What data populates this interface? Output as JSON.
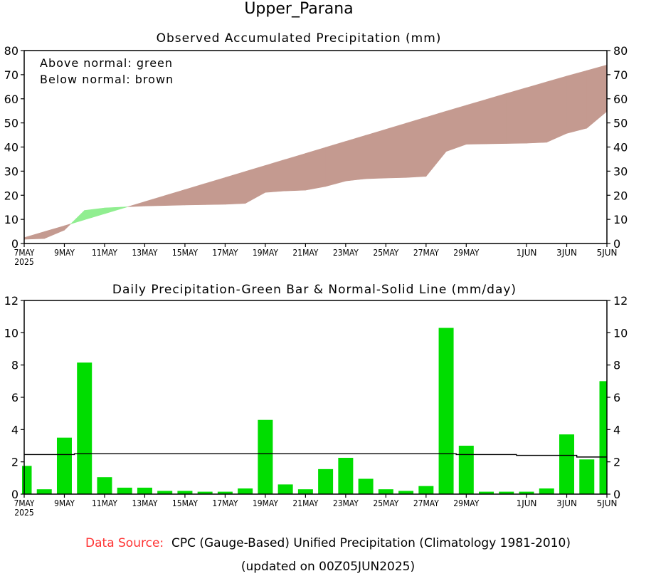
{
  "title": "Upper_Parana",
  "footer": {
    "source_label": "Data Source:",
    "source_text": "CPC (Gauge-Based) Unified Precipitation (Climatology 1981-2010)",
    "updated": "(updated on 00Z05JUN2025)"
  },
  "colors": {
    "above_normal": "#90ee90",
    "below_normal": "#c49a90",
    "bar": "#00dd00",
    "source_label": "#ff3333"
  },
  "chart_data": [
    {
      "type": "area",
      "title": "Observed Accumulated Precipitation (mm)",
      "legend": [
        "Above normal: green",
        "Below normal: brown"
      ],
      "legend_placement": "top-left",
      "ylim": [
        0,
        80
      ],
      "yticks": [
        "0",
        "10",
        "20",
        "30",
        "40",
        "50",
        "60",
        "70",
        "80"
      ],
      "xticks": [
        {
          "day": 0,
          "label": "7MAY",
          "sub": "2025"
        },
        {
          "day": 2,
          "label": "9MAY"
        },
        {
          "day": 4,
          "label": "11MAY"
        },
        {
          "day": 6,
          "label": "13MAY"
        },
        {
          "day": 8,
          "label": "15MAY"
        },
        {
          "day": 10,
          "label": "17MAY"
        },
        {
          "day": 12,
          "label": "19MAY"
        },
        {
          "day": 14,
          "label": "21MAY"
        },
        {
          "day": 16,
          "label": "23MAY"
        },
        {
          "day": 18,
          "label": "25MAY"
        },
        {
          "day": 20,
          "label": "27MAY"
        },
        {
          "day": 22,
          "label": "29MAY"
        },
        {
          "day": 25,
          "label": "1JUN"
        },
        {
          "day": 27,
          "label": "3JUN"
        },
        {
          "day": 29,
          "label": "5JUN"
        }
      ],
      "series": [
        {
          "name": "Observed",
          "values": [
            1.75,
            2.05,
            5.55,
            13.7,
            14.75,
            15.15,
            15.55,
            15.75,
            15.95,
            16.1,
            16.25,
            16.6,
            21.2,
            21.8,
            22.1,
            23.65,
            25.9,
            26.85,
            27.15,
            27.35,
            27.85,
            38.15,
            41.15,
            41.3,
            41.45,
            41.6,
            41.95,
            45.65,
            47.8,
            54.8
          ]
        },
        {
          "name": "Normal",
          "values": [
            2.45,
            4.9,
            7.35,
            9.85,
            12.35,
            14.85,
            17.35,
            19.85,
            22.35,
            24.85,
            27.35,
            29.85,
            32.35,
            34.85,
            37.35,
            39.85,
            42.35,
            44.85,
            47.35,
            49.85,
            52.35,
            54.85,
            57.3,
            59.75,
            62.2,
            64.6,
            67.0,
            69.4,
            71.7,
            74.0
          ]
        }
      ]
    },
    {
      "type": "bar",
      "title": "Daily Precipitation-Green Bar & Normal-Solid Line (mm/day)",
      "ylim": [
        0,
        12
      ],
      "yticks": [
        "0",
        "2",
        "4",
        "6",
        "8",
        "10",
        "12"
      ],
      "xticks": [
        {
          "day": 0,
          "label": "7MAY",
          "sub": "2025"
        },
        {
          "day": 2,
          "label": "9MAY"
        },
        {
          "day": 4,
          "label": "11MAY"
        },
        {
          "day": 6,
          "label": "13MAY"
        },
        {
          "day": 8,
          "label": "15MAY"
        },
        {
          "day": 10,
          "label": "17MAY"
        },
        {
          "day": 12,
          "label": "19MAY"
        },
        {
          "day": 14,
          "label": "21MAY"
        },
        {
          "day": 16,
          "label": "23MAY"
        },
        {
          "day": 18,
          "label": "25MAY"
        },
        {
          "day": 20,
          "label": "27MAY"
        },
        {
          "day": 22,
          "label": "29MAY"
        },
        {
          "day": 25,
          "label": "1JUN"
        },
        {
          "day": 27,
          "label": "3JUN"
        },
        {
          "day": 29,
          "label": "5JUN"
        }
      ],
      "categories": [
        "7MAY",
        "8MAY",
        "9MAY",
        "10MAY",
        "11MAY",
        "12MAY",
        "13MAY",
        "14MAY",
        "15MAY",
        "16MAY",
        "17MAY",
        "18MAY",
        "19MAY",
        "20MAY",
        "21MAY",
        "22MAY",
        "23MAY",
        "24MAY",
        "25MAY",
        "26MAY",
        "27MAY",
        "28MAY",
        "29MAY",
        "30MAY",
        "31MAY",
        "1JUN",
        "2JUN",
        "3JUN",
        "4JUN",
        "5JUN"
      ],
      "series": [
        {
          "name": "Daily Precipitation",
          "values": [
            1.75,
            0.3,
            3.5,
            8.15,
            1.05,
            0.4,
            0.4,
            0.2,
            0.2,
            0.15,
            0.15,
            0.35,
            4.6,
            0.6,
            0.3,
            1.55,
            2.25,
            0.95,
            0.3,
            0.2,
            0.5,
            10.3,
            3.0,
            0.15,
            0.15,
            0.15,
            0.35,
            3.7,
            2.15,
            7.0
          ]
        },
        {
          "name": "Normal",
          "values": [
            2.45,
            2.45,
            2.45,
            2.5,
            2.5,
            2.5,
            2.5,
            2.5,
            2.5,
            2.5,
            2.5,
            2.5,
            2.5,
            2.5,
            2.5,
            2.5,
            2.5,
            2.5,
            2.5,
            2.5,
            2.5,
            2.5,
            2.45,
            2.45,
            2.45,
            2.4,
            2.4,
            2.4,
            2.3,
            2.3
          ]
        }
      ]
    }
  ]
}
